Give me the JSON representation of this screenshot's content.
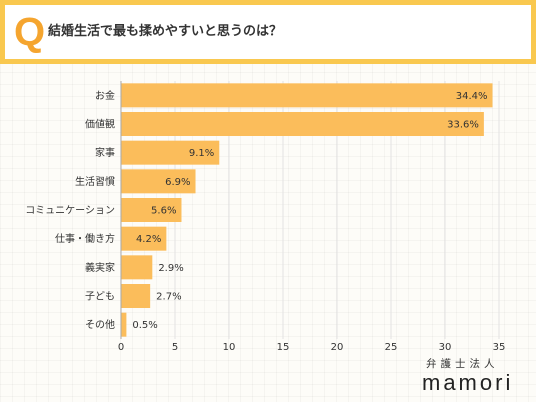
{
  "header": {
    "q_mark": "Q"
  },
  "chart_data": {
    "type": "bar",
    "orientation": "horizontal",
    "title": "結婚生活で最も揉めやすいと思うのは？",
    "categories": [
      "お金",
      "価値観",
      "家事",
      "生活習慣",
      "コミュニケーション",
      "仕事・働き方",
      "義実家",
      "子ども",
      "その他"
    ],
    "values": [
      34.4,
      33.6,
      9.1,
      6.9,
      5.6,
      4.2,
      2.9,
      2.7,
      0.5
    ],
    "unit": "%",
    "xlim": [
      0,
      35
    ],
    "xticks": [
      0,
      5,
      10,
      15,
      20,
      25,
      30,
      35
    ],
    "grid": "vertical",
    "legend": "none"
  },
  "logo": {
    "prefix": "弁護士法人",
    "name": "mamori"
  },
  "colors": {
    "frame": "#f9c84f",
    "q_mark": "#f5a52f",
    "bar": "#fbbd5b",
    "text": "#333333",
    "grid": "#e2e2e2",
    "axis": "#aaaaaa"
  }
}
